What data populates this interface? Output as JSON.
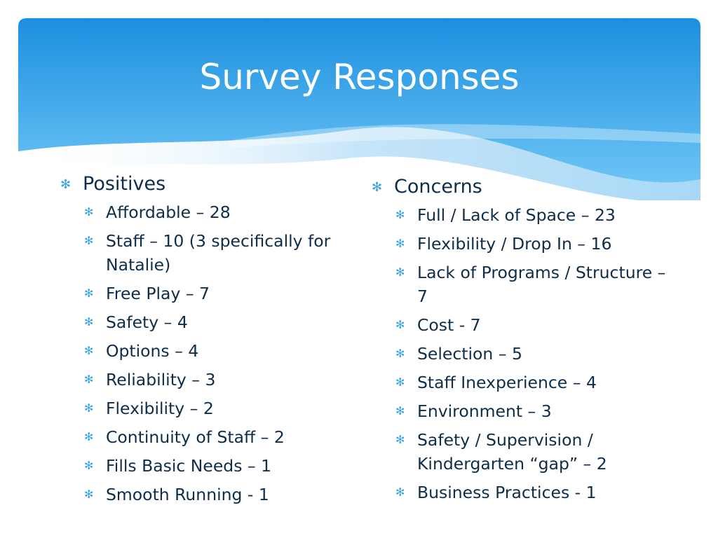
{
  "title": "Survey Responses",
  "colors": {
    "header_top": "#1b8fe0",
    "header_bottom": "#5fbdf2",
    "wave": "#d9eefb",
    "text": "#0e2d4a",
    "bullet": "#36a3e6"
  },
  "bullet_icon": "asterisk-bullet-icon",
  "positives": {
    "heading": "Positives",
    "items": [
      "Affordable – 28",
      "Staff – 10 (3 specifically for Natalie)",
      "Free Play – 7",
      "Safety – 4",
      "Options – 4",
      "Reliability – 3",
      "Flexibility – 2",
      "Continuity of Staff – 2",
      "Fills Basic Needs – 1",
      "Smooth Running - 1"
    ]
  },
  "concerns": {
    "heading": "Concerns",
    "items": [
      "Full / Lack of Space – 23",
      "Flexibility / Drop In – 16",
      "Lack of Programs / Structure – 7",
      "Cost -  7",
      "Selection – 5",
      "Staff Inexperience – 4",
      "Environment – 3",
      "Safety / Supervision / Kindergarten “gap” – 2",
      "Business Practices - 1"
    ]
  }
}
